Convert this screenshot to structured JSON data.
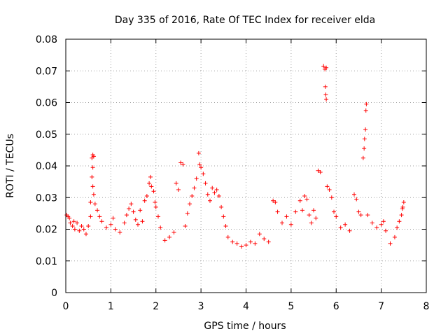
{
  "chart_data": {
    "type": "scatter",
    "title": "Day 335 of 2016, Rate Of TEC Index for receiver elda",
    "xlabel": "GPS time / hours",
    "ylabel": "ROTI / TECUs",
    "xlim": [
      0,
      8
    ],
    "ylim": [
      0,
      0.08
    ],
    "xticks": [
      0,
      1,
      2,
      3,
      4,
      5,
      6,
      7,
      8
    ],
    "xtick_labels": [
      "0",
      "1",
      "2",
      "3",
      "4",
      "5",
      "6",
      "7",
      "8"
    ],
    "yticks": [
      0,
      0.01,
      0.02,
      0.03,
      0.04,
      0.05,
      0.06,
      0.07,
      0.08
    ],
    "ytick_labels": [
      "0",
      "0.01",
      "0.02",
      "0.03",
      "0.04",
      "0.05",
      "0.06",
      "0.07",
      "0.08"
    ],
    "grid": true,
    "marker": "+",
    "color": "#ff0000",
    "series": [
      {
        "name": "ROTI",
        "points": [
          [
            0.02,
            0.0245
          ],
          [
            0.05,
            0.024
          ],
          [
            0.08,
            0.0235
          ],
          [
            0.1,
            0.022
          ],
          [
            0.15,
            0.021
          ],
          [
            0.18,
            0.0225
          ],
          [
            0.2,
            0.02
          ],
          [
            0.25,
            0.022
          ],
          [
            0.3,
            0.0195
          ],
          [
            0.35,
            0.021
          ],
          [
            0.4,
            0.02
          ],
          [
            0.45,
            0.0185
          ],
          [
            0.5,
            0.021
          ],
          [
            0.55,
            0.024
          ],
          [
            0.58,
            0.0425
          ],
          [
            0.6,
            0.0435
          ],
          [
            0.62,
            0.043
          ],
          [
            0.6,
            0.0395
          ],
          [
            0.58,
            0.0365
          ],
          [
            0.6,
            0.0335
          ],
          [
            0.62,
            0.031
          ],
          [
            0.65,
            0.028
          ],
          [
            0.55,
            0.0285
          ],
          [
            0.7,
            0.026
          ],
          [
            0.75,
            0.024
          ],
          [
            0.8,
            0.0225
          ],
          [
            0.9,
            0.0205
          ],
          [
            1.0,
            0.0215
          ],
          [
            1.05,
            0.0235
          ],
          [
            1.1,
            0.02
          ],
          [
            1.2,
            0.019
          ],
          [
            1.3,
            0.022
          ],
          [
            1.35,
            0.0245
          ],
          [
            1.4,
            0.0265
          ],
          [
            1.45,
            0.028
          ],
          [
            1.5,
            0.0255
          ],
          [
            1.55,
            0.023
          ],
          [
            1.6,
            0.0215
          ],
          [
            1.65,
            0.026
          ],
          [
            1.7,
            0.0225
          ],
          [
            1.75,
            0.029
          ],
          [
            1.8,
            0.0305
          ],
          [
            1.85,
            0.0345
          ],
          [
            1.88,
            0.0365
          ],
          [
            1.9,
            0.0335
          ],
          [
            1.95,
            0.032
          ],
          [
            1.98,
            0.0285
          ],
          [
            2.0,
            0.027
          ],
          [
            2.05,
            0.024
          ],
          [
            2.1,
            0.0205
          ],
          [
            2.2,
            0.0165
          ],
          [
            2.3,
            0.0175
          ],
          [
            2.4,
            0.019
          ],
          [
            2.45,
            0.0345
          ],
          [
            2.5,
            0.0325
          ],
          [
            2.55,
            0.041
          ],
          [
            2.6,
            0.0405
          ],
          [
            2.65,
            0.021
          ],
          [
            2.7,
            0.025
          ],
          [
            2.75,
            0.028
          ],
          [
            2.8,
            0.0305
          ],
          [
            2.85,
            0.033
          ],
          [
            2.9,
            0.036
          ],
          [
            2.95,
            0.044
          ],
          [
            2.97,
            0.0405
          ],
          [
            3.0,
            0.0395
          ],
          [
            3.05,
            0.0375
          ],
          [
            3.1,
            0.0345
          ],
          [
            3.15,
            0.031
          ],
          [
            3.2,
            0.029
          ],
          [
            3.25,
            0.033
          ],
          [
            3.3,
            0.0315
          ],
          [
            3.35,
            0.0325
          ],
          [
            3.4,
            0.0305
          ],
          [
            3.45,
            0.027
          ],
          [
            3.5,
            0.024
          ],
          [
            3.55,
            0.021
          ],
          [
            3.6,
            0.0175
          ],
          [
            3.7,
            0.016
          ],
          [
            3.8,
            0.0155
          ],
          [
            3.9,
            0.0145
          ],
          [
            4.0,
            0.015
          ],
          [
            4.1,
            0.016
          ],
          [
            4.2,
            0.0155
          ],
          [
            4.3,
            0.0185
          ],
          [
            4.4,
            0.017
          ],
          [
            4.5,
            0.016
          ],
          [
            4.6,
            0.029
          ],
          [
            4.65,
            0.0285
          ],
          [
            4.7,
            0.0255
          ],
          [
            4.8,
            0.022
          ],
          [
            4.9,
            0.024
          ],
          [
            5.0,
            0.0215
          ],
          [
            5.1,
            0.0255
          ],
          [
            5.2,
            0.029
          ],
          [
            5.25,
            0.026
          ],
          [
            5.3,
            0.0305
          ],
          [
            5.35,
            0.0295
          ],
          [
            5.4,
            0.0245
          ],
          [
            5.45,
            0.022
          ],
          [
            5.5,
            0.026
          ],
          [
            5.55,
            0.0235
          ],
          [
            5.6,
            0.0385
          ],
          [
            5.65,
            0.038
          ],
          [
            5.72,
            0.0715
          ],
          [
            5.75,
            0.0705
          ],
          [
            5.78,
            0.071
          ],
          [
            5.76,
            0.065
          ],
          [
            5.77,
            0.0625
          ],
          [
            5.78,
            0.061
          ],
          [
            5.8,
            0.0335
          ],
          [
            5.85,
            0.0325
          ],
          [
            5.9,
            0.03
          ],
          [
            5.95,
            0.0255
          ],
          [
            6.0,
            0.024
          ],
          [
            6.1,
            0.0205
          ],
          [
            6.2,
            0.0215
          ],
          [
            6.3,
            0.0195
          ],
          [
            6.4,
            0.031
          ],
          [
            6.45,
            0.0295
          ],
          [
            6.5,
            0.0255
          ],
          [
            6.55,
            0.0245
          ],
          [
            6.6,
            0.0425
          ],
          [
            6.62,
            0.0455
          ],
          [
            6.63,
            0.0485
          ],
          [
            6.65,
            0.0515
          ],
          [
            6.66,
            0.0575
          ],
          [
            6.67,
            0.0595
          ],
          [
            6.7,
            0.0245
          ],
          [
            6.8,
            0.022
          ],
          [
            6.9,
            0.0205
          ],
          [
            7.0,
            0.0215
          ],
          [
            7.05,
            0.0225
          ],
          [
            7.1,
            0.0195
          ],
          [
            7.2,
            0.0155
          ],
          [
            7.3,
            0.0175
          ],
          [
            7.35,
            0.0205
          ],
          [
            7.4,
            0.0225
          ],
          [
            7.45,
            0.0245
          ],
          [
            7.47,
            0.0265
          ],
          [
            7.5,
            0.0285
          ],
          [
            7.48,
            0.027
          ]
        ]
      }
    ]
  }
}
